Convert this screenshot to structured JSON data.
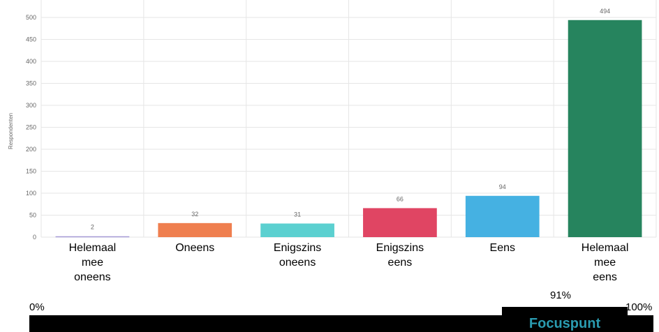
{
  "chart_data": {
    "type": "bar",
    "categories": [
      "Helemaal\nmee\noneens",
      "Oneens",
      "Enigszins\noneens",
      "Enigszins\neens",
      "Eens",
      "Helemaal\nmee\neens"
    ],
    "values": [
      2,
      32,
      31,
      66,
      94,
      494
    ],
    "bar_labels": [
      "2",
      "32",
      "31",
      "66",
      "94",
      "494"
    ],
    "colors": [
      "#a59ad6",
      "#ef7f4f",
      "#5bd0d0",
      "#e04563",
      "#45b1e2",
      "#26845e"
    ],
    "ylabel": "Respondenten",
    "xlabel": "",
    "title": "",
    "ylim": [
      0,
      500
    ],
    "yticks": [
      0,
      50,
      100,
      150,
      200,
      250,
      300,
      350,
      400,
      450,
      500
    ],
    "grid": true,
    "legend": "none"
  },
  "scale": {
    "min_label": "0%",
    "max_label": "100%",
    "marker_value_label": "91%",
    "marker_value": 0.91,
    "marker_title": "Focuspunt"
  }
}
